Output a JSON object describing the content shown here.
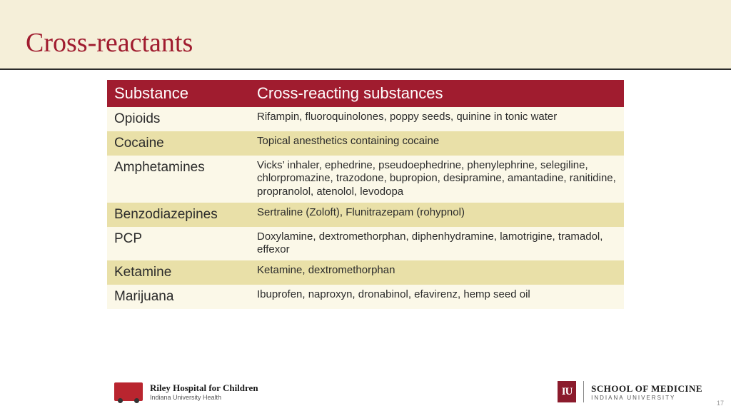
{
  "title": "Cross-reactants",
  "page_number": "17",
  "colors": {
    "header_band": "#f5efd9",
    "title": "#a01c2f",
    "table_header_bg": "#a01c2f",
    "table_header_text": "#ffffff",
    "row_light": "#fbf8e8",
    "row_dark": "#e9e0a8",
    "body_text": "#2b2b2b"
  },
  "table": {
    "columns": [
      "Substance",
      "Cross-reacting substances"
    ],
    "rows": [
      {
        "substance": "Opioids",
        "cross": "Rifampin, fluoroquinolones, poppy seeds, quinine in tonic water",
        "shade": "light"
      },
      {
        "substance": "Cocaine",
        "cross": "Topical anesthetics containing cocaine",
        "shade": "dark"
      },
      {
        "substance": "Amphetamines",
        "cross": "Vicks’ inhaler, ephedrine, pseudoephedrine, phenylephrine, selegiline, chlorpromazine, trazodone, bupropion, desipramine, amantadine, ranitidine, propranolol, atenolol, levodopa",
        "shade": "light"
      },
      {
        "substance": "Benzodiazepines",
        "cross": "Sertraline (Zoloft), Flunitrazepam (rohypnol)",
        "shade": "dark"
      },
      {
        "substance": "PCP",
        "cross": "Doxylamine, dextromethorphan, diphenhydramine, lamotrigine, tramadol, effexor",
        "shade": "light"
      },
      {
        "substance": "Ketamine",
        "cross": "Ketamine, dextromethorphan",
        "shade": "dark"
      },
      {
        "substance": "Marijuana",
        "cross": "Ibuprofen, naproxyn, dronabinol, efavirenz, hemp seed oil",
        "shade": "light"
      }
    ]
  },
  "footer": {
    "left": {
      "line1": "Riley Hospital for Children",
      "line2": "Indiana University Health"
    },
    "right": {
      "iu": "IU",
      "line1": "SCHOOL OF MEDICINE",
      "line2": "INDIANA UNIVERSITY"
    }
  }
}
